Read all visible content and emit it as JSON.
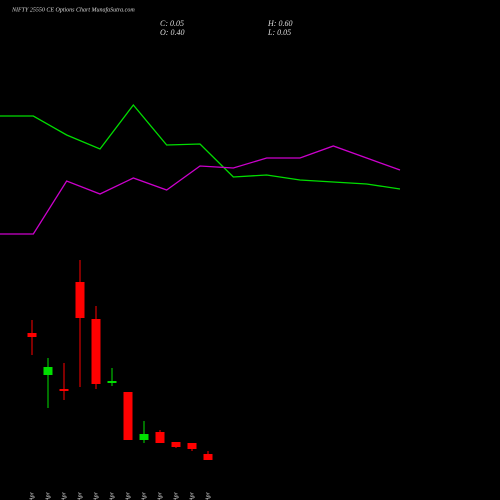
{
  "chart_data": [
    {
      "type": "candlestick",
      "title": "NIFTY 25550 CE Options Chart MunafaSutra.com",
      "annotations": [
        "C: 0.05",
        "H: 0.60",
        "O: 0.40",
        "L: 0.05"
      ],
      "categories": [
        "02 Apr",
        "03 Apr",
        "07 Apr",
        "08 Apr",
        "09 Apr",
        "10 Apr",
        "11 Apr",
        "15 Apr",
        "16 Apr",
        "17 Apr",
        "20 Apr",
        "21 Apr"
      ],
      "open": [
        167,
        125,
        111,
        218,
        181,
        117,
        108,
        60,
        68,
        58,
        57,
        46
      ],
      "high": [
        180,
        142,
        137,
        240,
        194,
        132,
        108,
        79,
        70,
        58,
        57,
        49
      ],
      "low": [
        145,
        92,
        100,
        113,
        111,
        114,
        60,
        57,
        57,
        52,
        49,
        40
      ],
      "close": [
        163,
        133,
        109,
        182,
        116,
        119,
        60,
        66,
        57,
        53,
        51,
        40
      ],
      "up_color": "#00e000",
      "down_color": "#ff0000",
      "ylim": [
        0,
        500
      ]
    },
    {
      "type": "line",
      "x": [
        0,
        1,
        2,
        3,
        4,
        5,
        6,
        7,
        8,
        9,
        10,
        11,
        12
      ],
      "xlim": [
        0,
        12
      ],
      "ylim": [
        0,
        500
      ],
      "series": [
        {
          "color": "#00dd00",
          "values": [
            384,
            384,
            365,
            351,
            395,
            355,
            356,
            323,
            325,
            320,
            318,
            316,
            311
          ]
        },
        {
          "color": "#cc00cc",
          "values": [
            266,
            266,
            319,
            306,
            322,
            310,
            334,
            332,
            342,
            342,
            354,
            342,
            330
          ]
        }
      ]
    }
  ]
}
